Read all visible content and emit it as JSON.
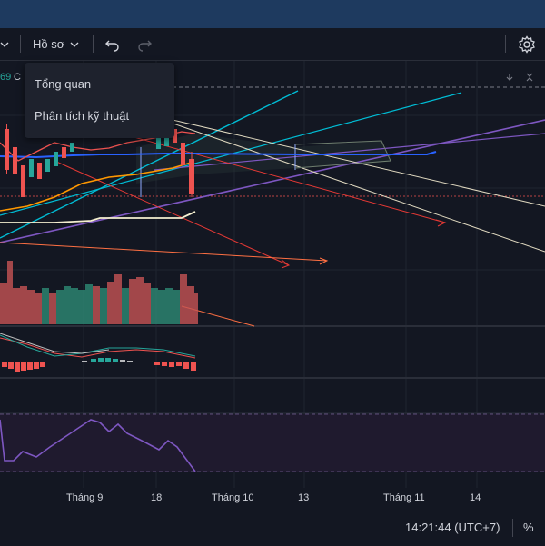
{
  "toolbar": {
    "profile_label": "Hồ sơ",
    "icons": [
      "chevron-down-icon",
      "undo-icon",
      "redo-icon",
      "gear-icon"
    ]
  },
  "legend": {
    "value_fragment": "69",
    "letter_fragment": "C"
  },
  "menu": {
    "items": [
      {
        "label": "Tổng quan"
      },
      {
        "label": "Phân tích kỹ thuật"
      }
    ]
  },
  "time_axis": {
    "labels": [
      "Tháng 9",
      "18",
      "Tháng 10",
      "13",
      "Tháng 11",
      "14"
    ]
  },
  "status": {
    "clock": "14:21:44 (UTC+7)",
    "percent_label": "%"
  },
  "colors": {
    "background": "#131722",
    "up_candle": "#26a69a",
    "down_candle": "#ef5350",
    "ma_blue": "#2962ff",
    "ma_orange": "#ff9800",
    "trend_cyan": "#00bcd4",
    "trend_purple": "#7e57c2",
    "rsi_purple": "#7e57c2"
  }
}
